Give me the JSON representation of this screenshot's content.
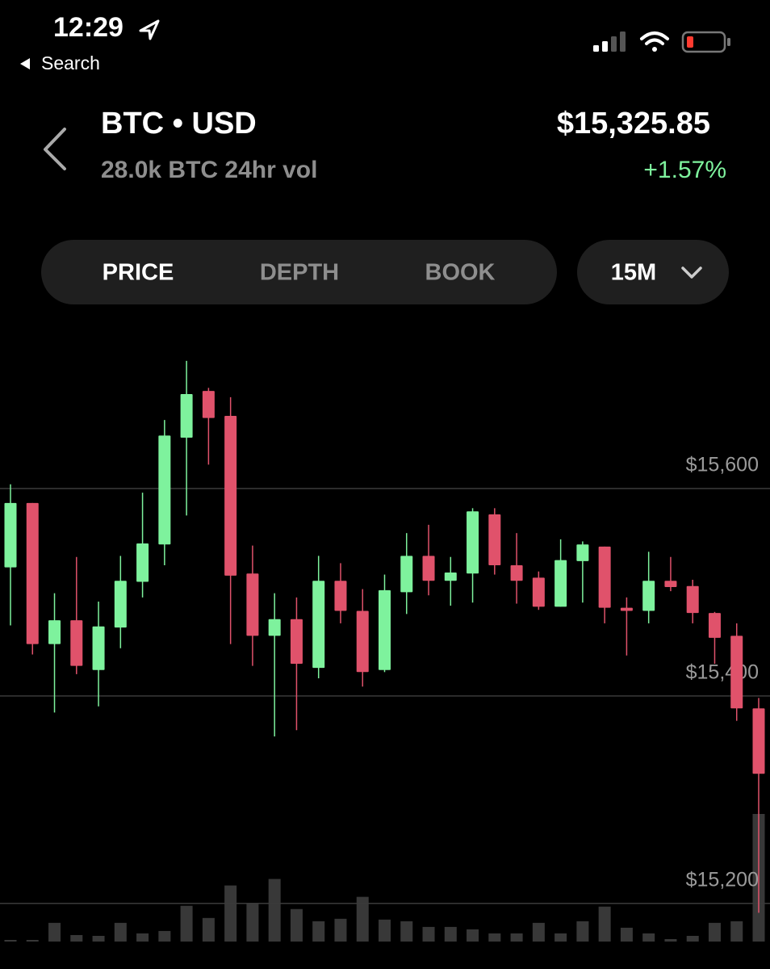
{
  "status_bar": {
    "time": "12:29",
    "back_label": "Search"
  },
  "header": {
    "pair": "BTC • USD",
    "volume": "28.0k BTC 24hr vol",
    "price": "$15,325.85",
    "change": "+1.57%"
  },
  "tabs": [
    "PRICE",
    "DEPTH",
    "BOOK"
  ],
  "interval": "15M",
  "chart_data": {
    "type": "candlestick",
    "up_color": "#7ef29d",
    "down_color": "#e0526b",
    "volume_color": "#383838",
    "open": [
      15524,
      15586,
      15450,
      15473,
      15425,
      15466,
      15510,
      15546,
      15649,
      15694,
      15670,
      15518,
      15458,
      15474,
      15427,
      15511,
      15482,
      15425,
      15500,
      15535,
      15511,
      15518,
      15575,
      15526,
      15514,
      15486,
      15530,
      15544,
      15485,
      15482,
      15511,
      15506,
      15480,
      15458,
      15388
    ],
    "high": [
      15604,
      15586,
      15499,
      15534,
      15491,
      15535,
      15596,
      15666,
      15723,
      15697,
      15688,
      15545,
      15499,
      15495,
      15535,
      15528,
      15503,
      15517,
      15557,
      15565,
      15534,
      15581,
      15581,
      15557,
      15520,
      15551,
      15549,
      15544,
      15495,
      15539,
      15534,
      15512,
      15481,
      15470,
      15398
    ],
    "low": [
      15468,
      15440,
      15384,
      15421,
      15390,
      15446,
      15495,
      15526,
      15574,
      15623,
      15450,
      15429,
      15361,
      15367,
      15417,
      15470,
      15409,
      15423,
      15479,
      15497,
      15487,
      15490,
      15517,
      15489,
      15483,
      15486,
      15490,
      15470,
      15439,
      15470,
      15501,
      15470,
      15431,
      15376,
      15191
    ],
    "close": [
      15586,
      15450,
      15473,
      15429,
      15467,
      15511,
      15547,
      15651,
      15691,
      15668,
      15516,
      15458,
      15474,
      15431,
      15511,
      15482,
      15423,
      15502,
      15535,
      15511,
      15519,
      15578,
      15526,
      15511,
      15486,
      15531,
      15546,
      15485,
      15482,
      15511,
      15505,
      15480,
      15456,
      15388,
      15325
    ],
    "volume": [
      2,
      2,
      23,
      8,
      7,
      23,
      10,
      13,
      44,
      29,
      69,
      47,
      77,
      40,
      25,
      28,
      55,
      27,
      25,
      18,
      18,
      15,
      10,
      10,
      23,
      10,
      25,
      43,
      17,
      10,
      3,
      7,
      23,
      25,
      157
    ],
    "ylim": [
      15150,
      15750
    ],
    "yticks": [
      {
        "value": 15600,
        "label": "$15,600"
      },
      {
        "value": 15400,
        "label": "$15,400"
      },
      {
        "value": 15200,
        "label": "$15,200"
      }
    ],
    "grid": true
  }
}
